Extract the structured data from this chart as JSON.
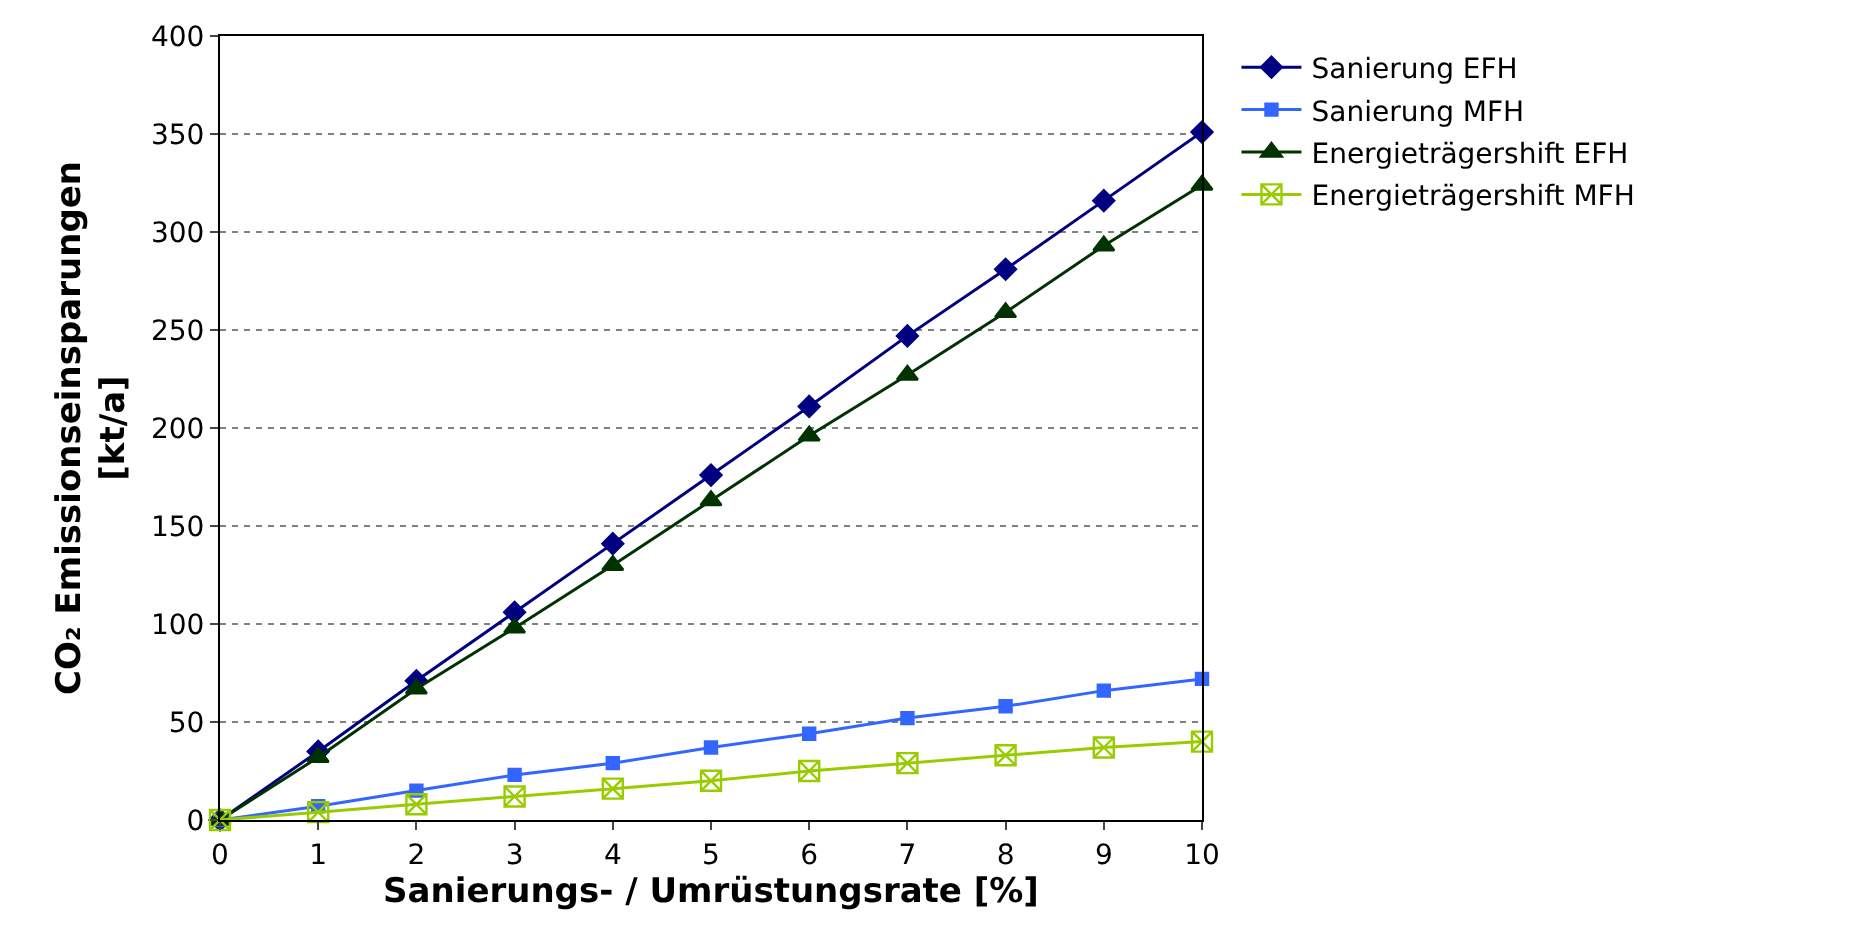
{
  "chart_data": {
    "type": "line",
    "xlabel": "Sanierungs- / Umrüstungsrate [%]",
    "ylabel": "CO₂ Emissionseinsparungen\n[kt/a]",
    "x": [
      0,
      1,
      2,
      3,
      4,
      5,
      6,
      7,
      8,
      9,
      10
    ],
    "series": [
      {
        "name": "Sanierung EFH",
        "color": "#000080",
        "marker": "diamond",
        "values": [
          0,
          35,
          71,
          106,
          141,
          176,
          211,
          247,
          281,
          316,
          351
        ]
      },
      {
        "name": "Sanierung MFH",
        "color": "#3366ff",
        "marker": "square",
        "values": [
          0,
          7,
          15,
          23,
          29,
          37,
          44,
          52,
          58,
          66,
          72
        ]
      },
      {
        "name": "Energieträgershift EFH",
        "color": "#003300",
        "marker": "triangle",
        "values": [
          0,
          32,
          67,
          98,
          130,
          163,
          196,
          227,
          259,
          293,
          324
        ]
      },
      {
        "name": "Energieträgershift MFH",
        "color": "#99cc00",
        "marker": "cross",
        "values": [
          0,
          4,
          8,
          12,
          16,
          20,
          25,
          29,
          33,
          37,
          40
        ]
      }
    ],
    "xlim": [
      0,
      10
    ],
    "xticks": [
      0,
      1,
      2,
      3,
      4,
      5,
      6,
      7,
      8,
      9,
      10
    ],
    "ylim": [
      0,
      400
    ],
    "yticks": [
      0,
      50,
      100,
      150,
      200,
      250,
      300,
      350,
      400
    ],
    "grid": "y",
    "legend": "top right",
    "line_style": "solid"
  }
}
